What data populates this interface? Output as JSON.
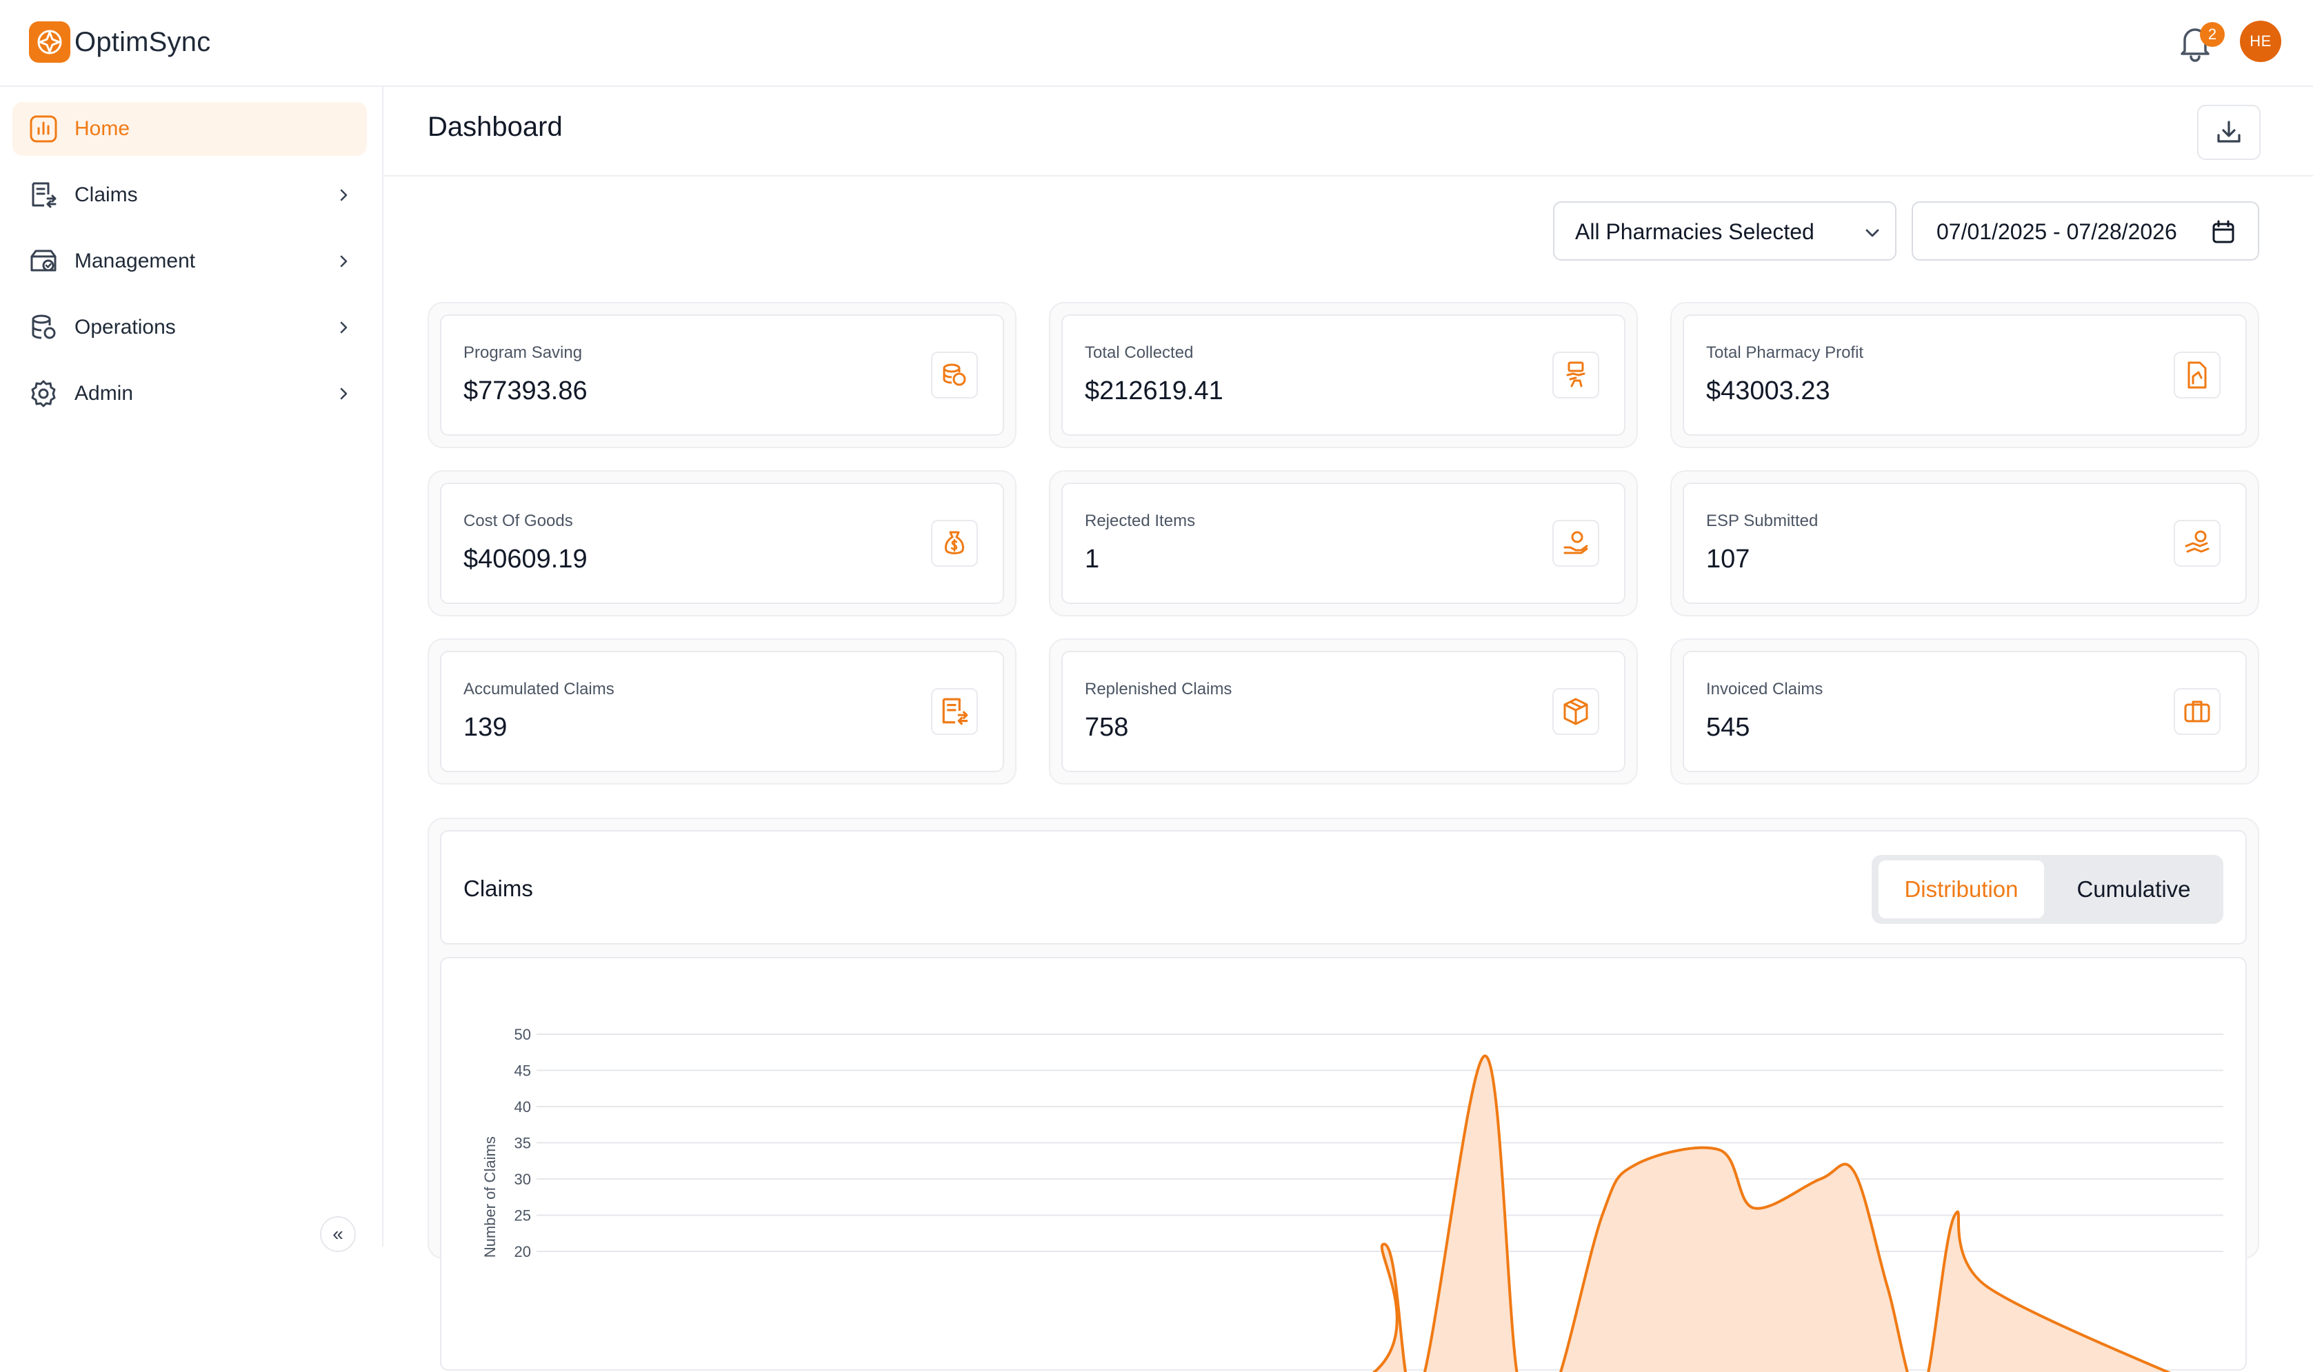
{
  "app": {
    "name": "OptimSync"
  },
  "topbar": {
    "notification_count": "2",
    "avatar_initials": "HE"
  },
  "sidebar": {
    "items": [
      {
        "label": "Home",
        "icon": "bar-chart-icon",
        "active": true
      },
      {
        "label": "Claims",
        "icon": "claims-icon"
      },
      {
        "label": "Management",
        "icon": "management-icon"
      },
      {
        "label": "Operations",
        "icon": "database-icon"
      },
      {
        "label": "Admin",
        "icon": "gear-icon"
      }
    ],
    "collapse_glyph": "«"
  },
  "page": {
    "title": "Dashboard"
  },
  "filters": {
    "pharmacy_select": "All Pharmacies Selected",
    "date_range": "07/01/2025 - 07/28/2026"
  },
  "cards": [
    {
      "label": "Program Saving",
      "value": "$77393.86",
      "icon": "coins-icon"
    },
    {
      "label": "Total Collected",
      "value": "$212619.41",
      "icon": "money-collect-icon"
    },
    {
      "label": "Total Pharmacy Profit",
      "value": "$43003.23",
      "icon": "profit-document-icon"
    },
    {
      "label": "Cost Of Goods",
      "value": "$40609.19",
      "icon": "money-bag-icon"
    },
    {
      "label": "Rejected Items",
      "value": "1",
      "icon": "hand-user-icon"
    },
    {
      "label": "ESP Submitted",
      "value": "107",
      "icon": "money-hand-icon"
    },
    {
      "label": "Accumulated Claims",
      "value": "139",
      "icon": "claims-icon"
    },
    {
      "label": "Replenished Claims",
      "value": "758",
      "icon": "package-icon"
    },
    {
      "label": "Invoiced Claims",
      "value": "545",
      "icon": "briefcase-icon"
    }
  ],
  "claims_panel": {
    "title": "Claims",
    "tabs": [
      "Distribution",
      "Cumulative"
    ],
    "active_tab": "Distribution"
  },
  "colors": {
    "accent": "#f07a14",
    "accent_fill": "#fde3d0"
  },
  "chart_data": {
    "type": "area",
    "ylabel": "Number of Claims",
    "ylim": [
      0,
      50
    ],
    "yticks": [
      20,
      25,
      30,
      35,
      40,
      45,
      50
    ],
    "grid": true,
    "x": [
      0,
      0.46,
      0.5,
      0.52,
      0.56,
      0.58,
      0.6,
      0.63,
      0.65,
      0.7,
      0.72,
      0.76,
      0.78,
      0.8,
      0.82,
      0.84,
      0.86,
      1
    ],
    "values": [
      0,
      0,
      21,
      0,
      47,
      2,
      0,
      25,
      32,
      34,
      26,
      30,
      31,
      15,
      0,
      25,
      15,
      0
    ]
  }
}
